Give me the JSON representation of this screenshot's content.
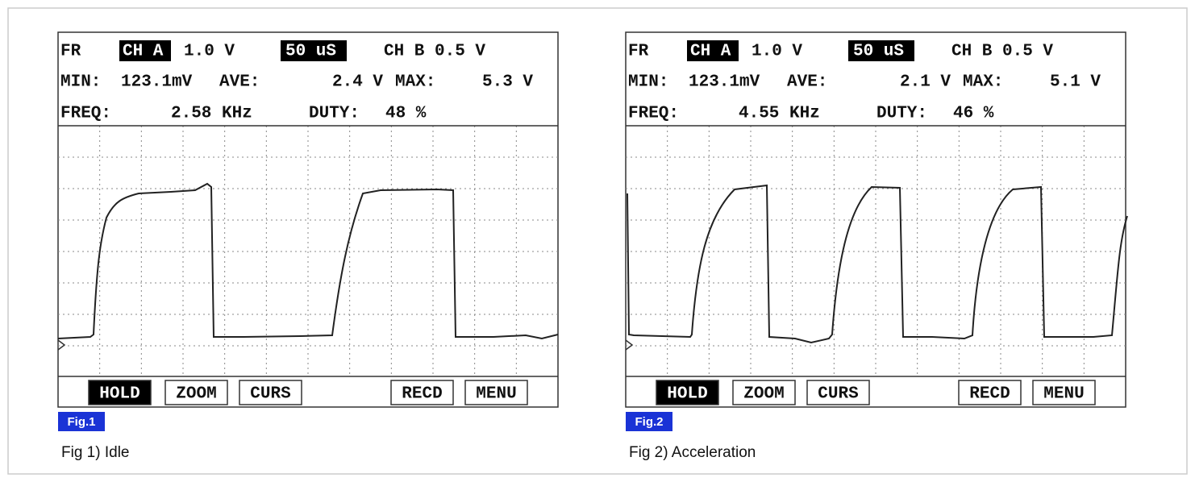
{
  "panels": [
    {
      "status": [
        [
          "FR",
          "CH A",
          "1.0 V",
          "50 uS",
          "CH B 0.5 V"
        ],
        [
          "MIN:",
          "123.1mV",
          "AVE:",
          "2.4 V",
          "MAX:",
          "5.3 V"
        ],
        [
          "FREQ:",
          "2.58 KHz",
          "DUTY:",
          "48 %"
        ]
      ],
      "buttons": [
        "HOLD",
        "ZOOM",
        "CURS",
        "RECD",
        "MENU"
      ],
      "tag": "Fig.1",
      "caption": "Fig 1) Idle"
    },
    {
      "status": [
        [
          "FR",
          "CH A",
          "1.0 V",
          "50 uS",
          "CH B 0.5 V"
        ],
        [
          "MIN:",
          "123.1mV",
          "AVE:",
          "2.1 V",
          "MAX:",
          "5.1 V"
        ],
        [
          "FREQ:",
          "4.55 KHz",
          "DUTY:",
          "46 %"
        ]
      ],
      "buttons": [
        "HOLD",
        "ZOOM",
        "CURS",
        "RECD",
        "MENU"
      ],
      "tag": "Fig.2",
      "caption": "Fig 2) Acceleration"
    }
  ]
}
